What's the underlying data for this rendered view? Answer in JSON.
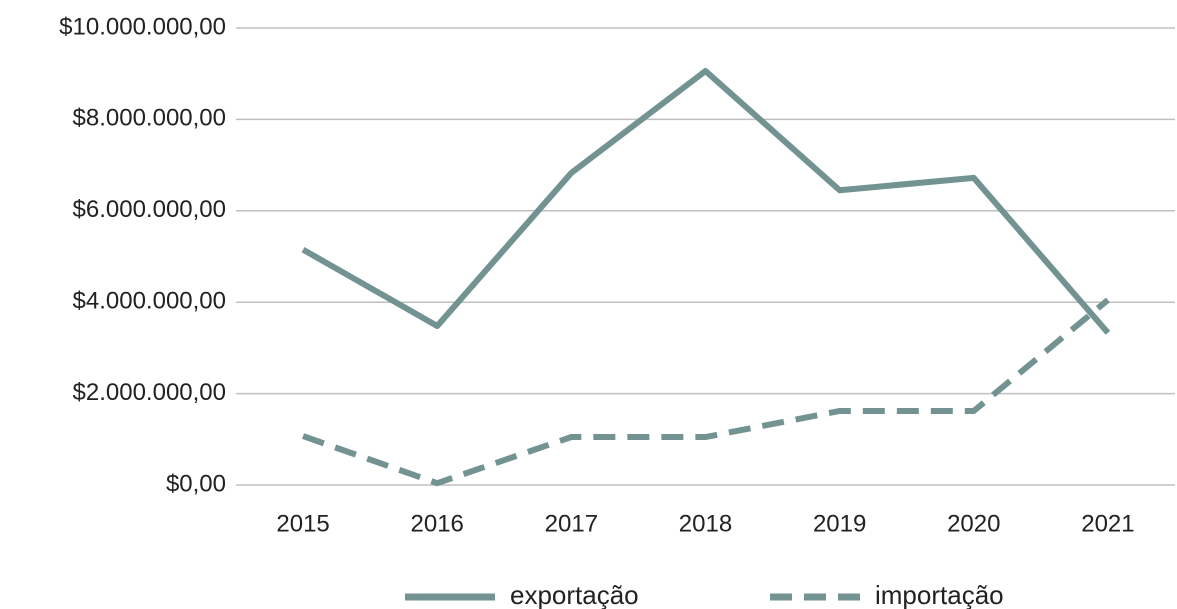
{
  "chart_data": {
    "type": "line",
    "categories": [
      "2015",
      "2016",
      "2017",
      "2018",
      "2019",
      "2020",
      "2021"
    ],
    "series": [
      {
        "name": "exportação",
        "color": "#739393",
        "line_style": "solid",
        "values": [
          5150000,
          3480000,
          6830000,
          9060000,
          6450000,
          6720000,
          3330000
        ]
      },
      {
        "name": "importação",
        "color": "#739393",
        "line_style": "dashed",
        "values": [
          1070000,
          40000,
          1050000,
          1050000,
          1620000,
          1620000,
          4050000
        ]
      }
    ],
    "ylim": [
      0,
      10000000
    ],
    "yticks": [
      {
        "value": 0,
        "label": "$0,00"
      },
      {
        "value": 2000000,
        "label": "$2.000.000,00"
      },
      {
        "value": 4000000,
        "label": "$4.000.000,00"
      },
      {
        "value": 6000000,
        "label": "$6.000.000,00"
      },
      {
        "value": 8000000,
        "label": "$8.000.000,00"
      },
      {
        "value": 10000000,
        "label": "$10.000.000,00"
      }
    ],
    "grid": true,
    "legend": "bottom"
  }
}
